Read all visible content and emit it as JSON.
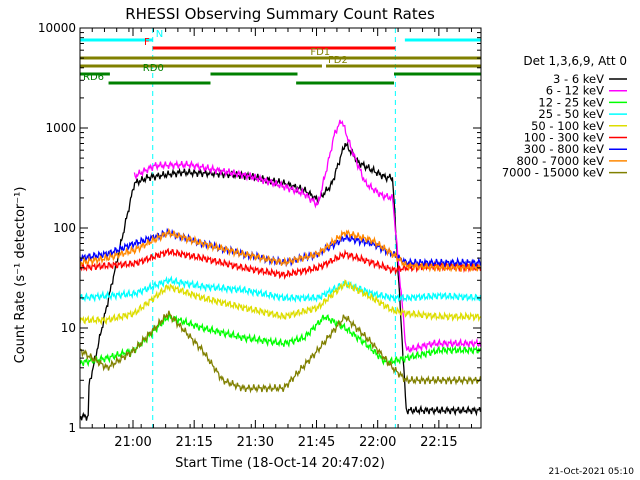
{
  "chart_data": {
    "type": "line",
    "title": "RHESSI Observing Summary Count Rates",
    "xlabel": "Start Time (18-Oct-14 20:47:02)",
    "ylabel": "Count Rate (s⁻¹ detector⁻¹)",
    "y_scale": "log",
    "ylim": [
      1,
      10000
    ],
    "xlim": [
      "20:47:02",
      "22:25:30"
    ],
    "x_tick_labels": [
      "21:00",
      "21:15",
      "21:30",
      "21:45",
      "22:00",
      "22:15"
    ],
    "x_ticks_min": [
      780,
      1680,
      2580,
      3480,
      4380,
      5280
    ],
    "y_tick_labels": [
      "1",
      "10",
      "100",
      "1000",
      "10000"
    ],
    "y_tick_values": [
      1,
      10,
      100,
      1000,
      10000
    ],
    "grid": false,
    "legend_position": "right",
    "legend_title": "Det 1,3,6,9, Att 0",
    "x_range_min": [
      0,
      5900
    ],
    "series": [
      {
        "name": "3 - 6 keV",
        "color": "#000000",
        "x": [
          0,
          120,
          124,
          800,
          1000,
          1500,
          2000,
          2500,
          3000,
          3300,
          3500,
          3700,
          3900,
          4100,
          4500,
          4600,
          4800,
          5000,
          5200,
          5450,
          5900
        ],
        "values": [
          1.3,
          1.3,
          2.5,
          280,
          320,
          360,
          350,
          330,
          280,
          240,
          190,
          270,
          700,
          450,
          320,
          320,
          1.5,
          1.5,
          1.5,
          1.5,
          1.5
        ]
      },
      {
        "name": "6 - 12 keV",
        "color": "#ff00ff",
        "x": [
          800,
          1100,
          1600,
          2000,
          2500,
          3000,
          3300,
          3500,
          3650,
          3750,
          3850,
          4000,
          4200,
          4450,
          4600,
          4800,
          5200,
          5450,
          5900
        ],
        "values": [
          330,
          420,
          430,
          380,
          330,
          260,
          220,
          170,
          450,
          900,
          1200,
          600,
          280,
          210,
          200,
          6,
          7,
          7,
          7
        ]
      },
      {
        "name": "12 - 25 keV",
        "color": "#00ff00",
        "x": [
          0,
          400,
          800,
          1300,
          1800,
          2400,
          3000,
          3300,
          3600,
          3900,
          4200,
          4500,
          4800,
          5300,
          5900
        ],
        "values": [
          4.5,
          5,
          6,
          13,
          10,
          8,
          7,
          8,
          13,
          10,
          7,
          4.5,
          5,
          6,
          6
        ]
      },
      {
        "name": "25 - 50 keV",
        "color": "#00ffff",
        "x": [
          0,
          400,
          800,
          1300,
          1800,
          2400,
          3000,
          3500,
          3900,
          4300,
          4600,
          4800,
          5300,
          5900
        ],
        "values": [
          20,
          21,
          22,
          30,
          26,
          24,
          20,
          20,
          28,
          22,
          20,
          20,
          21,
          20
        ]
      },
      {
        "name": "50 - 100 keV",
        "color": "#dddd00",
        "x": [
          0,
          400,
          800,
          1300,
          1800,
          2400,
          3000,
          3500,
          3900,
          4300,
          4600,
          4800,
          5300,
          5900
        ],
        "values": [
          12,
          12,
          14,
          26,
          20,
          16,
          13,
          16,
          28,
          20,
          15,
          14,
          13,
          13
        ]
      },
      {
        "name": "100 - 300 keV",
        "color": "#ff0000",
        "x": [
          0,
          400,
          800,
          1300,
          1800,
          2400,
          3000,
          3500,
          3900,
          4300,
          4600,
          4800,
          5300,
          5900
        ],
        "values": [
          40,
          42,
          44,
          58,
          50,
          40,
          34,
          40,
          55,
          45,
          38,
          40,
          42,
          40
        ]
      },
      {
        "name": "300 - 800 keV",
        "color": "#0000ff",
        "x": [
          0,
          400,
          800,
          1300,
          1800,
          2400,
          3000,
          3500,
          3900,
          4300,
          4600,
          4800,
          5300,
          5900
        ],
        "values": [
          50,
          55,
          70,
          90,
          70,
          55,
          45,
          55,
          80,
          70,
          55,
          45,
          45,
          45
        ]
      },
      {
        "name": "800 - 7000 keV",
        "color": "#ff8800",
        "x": [
          0,
          400,
          800,
          1300,
          1800,
          2400,
          3000,
          3500,
          3900,
          4300,
          4600,
          4800,
          5300,
          5900
        ],
        "values": [
          45,
          50,
          60,
          90,
          70,
          55,
          45,
          55,
          90,
          75,
          55,
          42,
          40,
          40
        ]
      },
      {
        "name": "7000 - 15000 keV",
        "color": "#808000",
        "x": [
          0,
          400,
          800,
          1300,
          1800,
          2100,
          2400,
          3000,
          3500,
          3900,
          4300,
          4600,
          4800,
          5300,
          5900
        ],
        "values": [
          6,
          4,
          6,
          14,
          6,
          3,
          2.5,
          2.5,
          6,
          13,
          7,
          4,
          3,
          3,
          3
        ]
      }
    ],
    "flag_bars": [
      {
        "label": "N",
        "color": "#00ffff",
        "label_pos": "right",
        "ranges_min": [
          [
            0,
            1070
          ],
          [
            4780,
            5900
          ]
        ]
      },
      {
        "label": "F",
        "color": "#ff0000",
        "label_pos": "left",
        "ranges_min": [
          [
            1070,
            4640
          ]
        ]
      },
      {
        "label": "FD1",
        "color": "#808000",
        "label_pos": "mid",
        "ranges_min": [
          [
            0,
            5900
          ]
        ]
      },
      {
        "label": "FD2",
        "color": "#808000",
        "label_pos": "mid",
        "ranges_min": [
          [
            0,
            3560
          ],
          [
            3620,
            5900
          ]
        ]
      },
      {
        "label": "RD0",
        "color": "#008000",
        "label_pos": "right",
        "ranges_min": [
          [
            0,
            440
          ],
          [
            1920,
            3200
          ],
          [
            4620,
            5900
          ]
        ]
      },
      {
        "label": "RD6",
        "color": "#008000",
        "label_pos": "right",
        "ranges_min": [
          [
            420,
            1920
          ],
          [
            3180,
            4620
          ]
        ]
      }
    ],
    "saa_night_markers_min": [
      1070,
      4640,
      5900
    ]
  },
  "footer": {
    "timestamp": "21-Oct-2021 05:10"
  }
}
